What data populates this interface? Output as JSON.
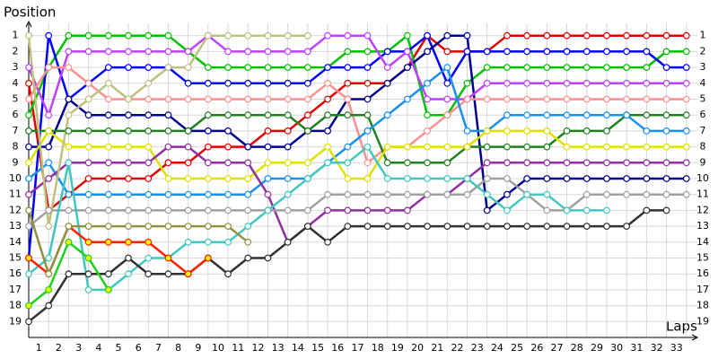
{
  "chart_data": {
    "type": "line",
    "x_label": "Laps",
    "y_label": "Position",
    "xlim": [
      0,
      34
    ],
    "ylim": [
      0,
      20
    ],
    "inverted_y": true,
    "grid": true,
    "xticks": [
      1,
      2,
      3,
      4,
      5,
      6,
      7,
      8,
      9,
      10,
      11,
      12,
      13,
      14,
      15,
      16,
      17,
      18,
      19,
      20,
      21,
      22,
      23,
      24,
      25,
      26,
      27,
      28,
      29,
      30,
      31,
      32,
      33
    ],
    "yticks": [
      1,
      2,
      3,
      4,
      5,
      6,
      7,
      8,
      9,
      10,
      11,
      12,
      13,
      14,
      15,
      16,
      17,
      18,
      19
    ],
    "x": [
      0,
      1,
      2,
      3,
      4,
      5,
      6,
      7,
      8,
      9,
      10,
      11,
      12,
      13,
      14,
      15,
      16,
      17,
      18,
      19,
      20,
      21,
      22,
      23,
      24,
      25,
      26,
      27,
      28,
      29,
      30,
      31,
      32,
      33
    ],
    "series": [
      {
        "color": "#e00000",
        "values": [
          4,
          12,
          11,
          10,
          10,
          10,
          10,
          9,
          9,
          8,
          8,
          8,
          7,
          7,
          6,
          5,
          4,
          4,
          4,
          3,
          1,
          2,
          2,
          2,
          1,
          1,
          1,
          1,
          1,
          1,
          1,
          1,
          1,
          1
        ]
      },
      {
        "color": "#00c000",
        "values": [
          6,
          3,
          1,
          1,
          1,
          1,
          1,
          1,
          2,
          3,
          3,
          3,
          3,
          3,
          3,
          3,
          2,
          2,
          2,
          1,
          6,
          6,
          4,
          3,
          3,
          3,
          3,
          3,
          3,
          3,
          3,
          3,
          2,
          2
        ]
      },
      {
        "color": "#0000ff",
        "values": [
          15,
          1,
          5,
          4,
          3,
          3,
          3,
          3,
          4,
          4,
          4,
          4,
          4,
          4,
          4,
          3,
          3,
          3,
          2,
          2,
          1,
          4,
          2,
          2,
          2,
          2,
          2,
          2,
          2,
          2,
          2,
          2,
          3,
          3
        ]
      },
      {
        "color": "#000090",
        "values": [
          8,
          8,
          5,
          6,
          6,
          6,
          6,
          6,
          7,
          7,
          7,
          8,
          8,
          8,
          7,
          7,
          5,
          5,
          4,
          3,
          2,
          1,
          1,
          12,
          11,
          10,
          10,
          10,
          10,
          10,
          10,
          10,
          10,
          10
        ]
      },
      {
        "color": "#c040ff",
        "values": [
          3,
          6,
          2,
          2,
          2,
          2,
          2,
          2,
          2,
          1,
          2,
          2,
          2,
          2,
          2,
          1,
          1,
          1,
          3,
          2,
          5,
          5,
          5,
          4,
          4,
          4,
          4,
          4,
          4,
          4,
          4,
          4,
          4,
          4
        ]
      },
      {
        "color": "#ff9090",
        "values": [
          5,
          3,
          3,
          4,
          5,
          5,
          5,
          5,
          5,
          5,
          5,
          5,
          5,
          5,
          5,
          4,
          5,
          9,
          8,
          8,
          7,
          6,
          5,
          5,
          5,
          5,
          5,
          5,
          5,
          5,
          5,
          5,
          5,
          5
        ]
      },
      {
        "color": "#208020",
        "values": [
          7,
          7,
          7,
          7,
          7,
          7,
          7,
          7,
          7,
          6,
          6,
          6,
          6,
          6,
          7,
          6,
          6,
          6,
          9,
          9,
          9,
          9,
          8,
          8,
          8,
          8,
          8,
          7,
          7,
          7,
          6,
          6,
          6,
          6
        ]
      },
      {
        "color": "#1890f0",
        "values": [
          10,
          9,
          11,
          11,
          11,
          11,
          11,
          11,
          11,
          11,
          11,
          11,
          10,
          10,
          10,
          9,
          8,
          7,
          6,
          5,
          4,
          3,
          7,
          7,
          6,
          6,
          6,
          6,
          6,
          6,
          6,
          7,
          7,
          7
        ]
      },
      {
        "color": "#e0e000",
        "values": [
          9,
          7,
          8,
          8,
          8,
          8,
          8,
          10,
          10,
          10,
          10,
          10,
          9,
          9,
          9,
          8,
          10,
          10,
          8,
          8,
          8,
          8,
          8,
          7,
          7,
          7,
          7,
          8,
          8,
          8,
          8,
          8,
          8,
          8
        ]
      },
      {
        "color": "#9030a0",
        "values": [
          11,
          10,
          9,
          9,
          9,
          9,
          9,
          8,
          8,
          9,
          9,
          9,
          11,
          14,
          13,
          12,
          12,
          12,
          12,
          12,
          11,
          11,
          10,
          9,
          9,
          9,
          9,
          9,
          9,
          9,
          9,
          9,
          9,
          9
        ]
      },
      {
        "color": "#a0a0a0",
        "values": [
          13,
          12,
          12,
          12,
          12,
          12,
          12,
          12,
          12,
          12,
          12,
          12,
          12,
          12,
          12,
          11,
          11,
          11,
          11,
          11,
          11,
          11,
          11,
          10,
          10,
          11,
          12,
          12,
          11,
          11,
          11,
          11,
          11,
          11
        ]
      },
      {
        "color": "#40c8c0",
        "values": [
          16,
          15,
          9,
          17,
          17,
          16,
          15,
          15,
          14,
          14,
          14,
          13,
          12,
          11,
          10,
          9,
          9,
          8,
          10,
          10,
          10,
          10,
          10,
          11,
          12,
          11,
          11,
          12,
          12,
          12,
          null,
          null,
          null,
          null
        ]
      },
      {
        "color": "#303030",
        "values": [
          19,
          18,
          16,
          16,
          16,
          15,
          16,
          16,
          16,
          15,
          16,
          15,
          15,
          14,
          13,
          14,
          13,
          13,
          13,
          13,
          13,
          13,
          13,
          13,
          13,
          13,
          13,
          13,
          13,
          13,
          13,
          12,
          12,
          null
        ]
      },
      {
        "color": "#ff2000",
        "marker_color": "#ffff00",
        "values": [
          15,
          16,
          13,
          14,
          14,
          14,
          14,
          15,
          16,
          15,
          null,
          null,
          null,
          null,
          null,
          null,
          null,
          null,
          null,
          null,
          null,
          null,
          null,
          null,
          null,
          null,
          null,
          null,
          null,
          null,
          null,
          null,
          null,
          null
        ]
      },
      {
        "color": "#20d020",
        "marker_color": "#ffff00",
        "values": [
          18,
          17,
          14,
          15,
          17,
          null,
          null,
          null,
          null,
          null,
          null,
          null,
          null,
          null,
          null,
          null,
          null,
          null,
          null,
          null,
          null,
          null,
          null,
          null,
          null,
          null,
          null,
          null,
          null,
          null,
          null,
          null,
          null,
          null
        ]
      },
      {
        "color": "#909040",
        "values": [
          12,
          16,
          13,
          13,
          13,
          13,
          13,
          13,
          13,
          13,
          13,
          14,
          null,
          null,
          null,
          null,
          null,
          null,
          null,
          null,
          null,
          null,
          null,
          null,
          null,
          null,
          null,
          null,
          null,
          null,
          null,
          null,
          null,
          null
        ]
      },
      {
        "color": "#c0c080",
        "values": [
          1,
          13,
          6,
          5,
          4,
          5,
          4,
          3,
          3,
          1,
          1,
          1,
          1,
          1,
          1,
          null,
          null,
          null,
          null,
          null,
          null,
          null,
          null,
          null,
          null,
          null,
          null,
          null,
          null,
          null,
          null,
          null,
          null,
          null
        ]
      }
    ]
  }
}
